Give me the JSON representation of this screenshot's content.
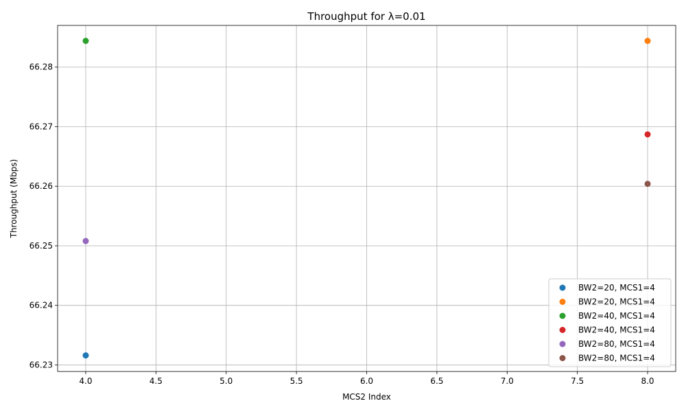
{
  "chart_data": {
    "type": "scatter",
    "title": "Throughput for λ=0.01",
    "xlabel": "MCS2 Index",
    "ylabel": "Throughput (Mbps)",
    "xlim": [
      3.8,
      8.2
    ],
    "ylim": [
      66.2289,
      66.287
    ],
    "x_ticks": [
      4.0,
      4.5,
      5.0,
      5.5,
      6.0,
      6.5,
      7.0,
      7.5,
      8.0
    ],
    "x_tick_labels": [
      "4.0",
      "4.5",
      "5.0",
      "5.5",
      "6.0",
      "6.5",
      "7.0",
      "7.5",
      "8.0"
    ],
    "y_ticks": [
      66.23,
      66.24,
      66.25,
      66.26,
      66.27,
      66.28
    ],
    "y_tick_labels": [
      "66.23",
      "66.24",
      "66.25",
      "66.26",
      "66.27",
      "66.28"
    ],
    "grid": true,
    "legend_position": "bottom-right",
    "series": [
      {
        "name": "BW2=20, MCS1=4",
        "color": "#1f77b4",
        "points": [
          {
            "x": 4,
            "y": 66.2316
          }
        ]
      },
      {
        "name": "BW2=20, MCS1=4",
        "color": "#ff7f0e",
        "points": [
          {
            "x": 8,
            "y": 66.2844
          }
        ]
      },
      {
        "name": "BW2=40, MCS1=4",
        "color": "#2ca02c",
        "points": [
          {
            "x": 4,
            "y": 66.2844
          }
        ]
      },
      {
        "name": "BW2=40, MCS1=4",
        "color": "#d62728",
        "points": [
          {
            "x": 8,
            "y": 66.2687
          }
        ]
      },
      {
        "name": "BW2=80, MCS1=4",
        "color": "#9467bd",
        "points": [
          {
            "x": 4,
            "y": 66.2508
          }
        ]
      },
      {
        "name": "BW2=80, MCS1=4",
        "color": "#8c564b",
        "points": [
          {
            "x": 8,
            "y": 66.2604
          }
        ]
      }
    ]
  }
}
